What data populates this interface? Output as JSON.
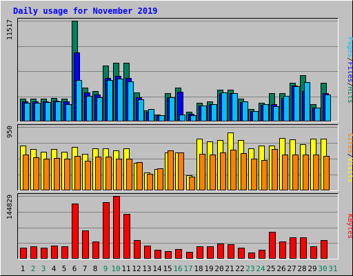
{
  "chart_data": {
    "type": "bar",
    "title": "Daily usage for November 2019",
    "categories": [
      "1",
      "2",
      "3",
      "4",
      "5",
      "6",
      "7",
      "8",
      "9",
      "10",
      "11",
      "12",
      "13",
      "14",
      "15",
      "16",
      "17",
      "18",
      "19",
      "20",
      "21",
      "22",
      "23",
      "24",
      "25",
      "26",
      "27",
      "28",
      "29",
      "30",
      "31"
    ],
    "weekend_days": [
      "2",
      "3",
      "9",
      "10",
      "16",
      "17",
      "23",
      "24",
      "30",
      "31"
    ],
    "colors": {
      "title": "#0000ff",
      "hits": "#00805c",
      "files": "#0000ff",
      "pages": "#00c0ff",
      "visits": "#ffff00",
      "sites": "#ff8000",
      "kbytes": "#ff0000",
      "weekday_label": "#000000",
      "weekend_label": "#00805c",
      "plot_bg": "#c0c0c0",
      "gridline": "#808080"
    },
    "panels": [
      {
        "id": "top",
        "ymax": 11517,
        "ymax_label": "11517",
        "legend": [
          "Pages",
          "Files",
          "Hits"
        ],
        "series": [
          {
            "name": "Hits",
            "values": [
              2600,
              2600,
              2600,
              2700,
              2600,
              11517,
              3900,
              3500,
              6400,
              6700,
              6700,
              3300,
              1300,
              800,
              3200,
              3900,
              1100,
              2100,
              2300,
              3600,
              3600,
              2600,
              1400,
              2100,
              3200,
              3200,
              4400,
              5300,
              2000,
              4400,
              0
            ]
          },
          {
            "name": "Files",
            "values": [
              2300,
              2300,
              2300,
              2400,
              2300,
              7900,
              3300,
              3100,
              5000,
              5200,
              5000,
              2800,
              1100,
              700,
              2800,
              3400,
              900,
              1800,
              2000,
              3200,
              3200,
              2200,
              1200,
              1900,
              2000,
              2700,
              4100,
              3500,
              1600,
              3200,
              0
            ]
          },
          {
            "name": "Pages",
            "values": [
              2100,
              2100,
              2200,
              2300,
              2000,
              4700,
              2900,
              2800,
              4700,
              4900,
              4600,
              2500,
              1400,
              700,
              2800,
              800,
              700,
              1800,
              2000,
              3300,
              3200,
              2300,
              1200,
              2000,
              1700,
              2900,
              4000,
              4500,
              1600,
              3100,
              0
            ]
          }
        ]
      },
      {
        "id": "middle",
        "ymax": 950,
        "ymax_label": "950",
        "legend": [
          "Sites",
          "Visits"
        ],
        "series": [
          {
            "name": "Visits",
            "values": [
              670,
              620,
              580,
              620,
              580,
              650,
              550,
              630,
              630,
              600,
              630,
              410,
              270,
              320,
              570,
              570,
              230,
              770,
              730,
              750,
              870,
              750,
              630,
              670,
              670,
              780,
              760,
              690,
              770,
              770,
              0
            ]
          },
          {
            "name": "Sites",
            "values": [
              540,
              500,
              470,
              490,
              480,
              520,
              440,
              510,
              510,
              480,
              480,
              420,
              250,
              330,
              600,
              570,
              210,
              550,
              540,
              570,
              610,
              560,
              480,
              450,
              620,
              540,
              540,
              540,
              540,
              520,
              0
            ]
          }
        ]
      },
      {
        "id": "bottom",
        "ymax": 144829,
        "ymax_label": "144829",
        "legend": [
          "KBytes"
        ],
        "series": [
          {
            "name": "KBytes",
            "values": [
              25000,
              28000,
              26000,
              31000,
              28000,
              127000,
              66000,
              40000,
              130000,
              144829,
              104000,
              43000,
              30000,
              20000,
              18000,
              22000,
              16000,
              28000,
              28000,
              35000,
              33000,
              26000,
              15000,
              20000,
              62000,
              40000,
              50000,
              50000,
              28000,
              43000,
              0
            ]
          }
        ]
      }
    ]
  }
}
